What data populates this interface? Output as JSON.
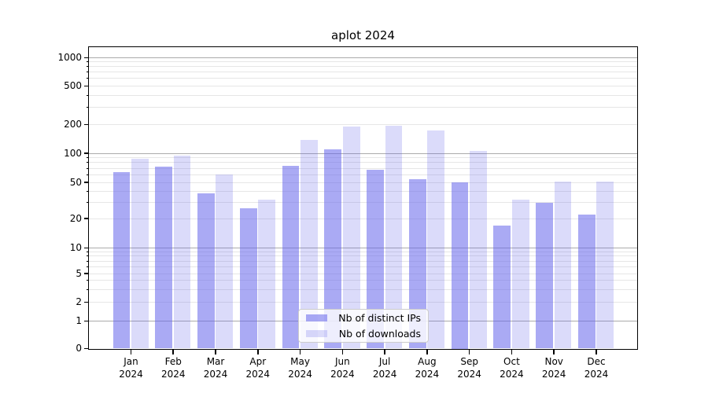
{
  "chart_data": {
    "type": "bar",
    "title": "aplot 2024",
    "categories": [
      "Jan 2024",
      "Feb 2024",
      "Mar 2024",
      "Apr 2024",
      "May 2024",
      "Jun 2024",
      "Jul 2024",
      "Aug 2024",
      "Sep 2024",
      "Oct 2024",
      "Nov 2024",
      "Dec 2024"
    ],
    "x_tick_line1": [
      "Jan",
      "Feb",
      "Mar",
      "Apr",
      "May",
      "Jun",
      "Jul",
      "Aug",
      "Sep",
      "Oct",
      "Nov",
      "Dec"
    ],
    "x_tick_line2": "2024",
    "series": [
      {
        "name": "Nb of distinct IPs",
        "color": "#6464eb",
        "alpha": 0.55,
        "values": [
          64,
          73,
          38,
          26,
          74,
          111,
          68,
          54,
          50,
          17,
          30,
          22
        ]
      },
      {
        "name": "Nb of downloads",
        "color": "#6464eb",
        "alpha": 0.23,
        "values": [
          88,
          95,
          60,
          32,
          139,
          191,
          196,
          173,
          106,
          32,
          51,
          51
        ]
      }
    ],
    "y_axis": {
      "scale": "symlog",
      "major_ticks": [
        0,
        1,
        2,
        5,
        10,
        20,
        50,
        100,
        200,
        500,
        1000
      ],
      "minor_gridlines": [
        3,
        4,
        6,
        7,
        8,
        9,
        30,
        40,
        60,
        70,
        80,
        90,
        300,
        400,
        600,
        700,
        800,
        900
      ],
      "decade_ticks": [
        1,
        10,
        100,
        1000
      ],
      "ylim": [
        0,
        1300
      ]
    },
    "grid": "horizontal, major and minor",
    "legend": {
      "position": "lower center",
      "entries": [
        "Nb of distinct IPs",
        "Nb of downloads"
      ]
    }
  },
  "colors": {
    "background": "#ffffff",
    "bar_base": "#6464eb",
    "major_grid": "#ababab",
    "minor_grid": "#e6e6e6",
    "axis": "#000000",
    "legend_border": "#cccccc"
  }
}
